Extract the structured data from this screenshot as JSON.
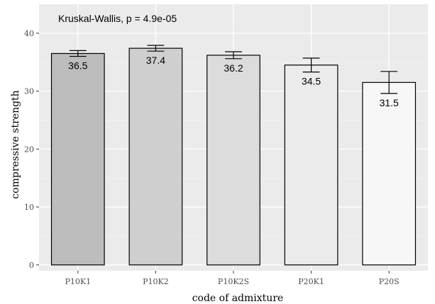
{
  "chart_data": {
    "type": "bar",
    "annotation": "Kruskal-Wallis, p = 4.9e-05",
    "xlabel": "code of admixture",
    "ylabel": "compressive strength",
    "categories": [
      "P10K1",
      "P10K2",
      "P10K2S",
      "P20K1",
      "P20S"
    ],
    "values": [
      36.5,
      37.4,
      36.2,
      34.5,
      31.5
    ],
    "value_labels": [
      "36.5",
      "37.4",
      "36.2",
      "34.5",
      "31.5"
    ],
    "error_low": [
      36.0,
      36.9,
      35.6,
      33.3,
      29.6
    ],
    "error_high": [
      37.0,
      37.9,
      36.8,
      35.7,
      33.4
    ],
    "bar_colors": [
      "#bdbdbd",
      "#cfcfcf",
      "#dcdcdc",
      "#ebebeb",
      "#f7f7f7"
    ],
    "ylim": [
      -1,
      45
    ],
    "yticks": [
      0,
      10,
      20,
      30,
      40
    ],
    "ytick_labels": [
      "0",
      "10",
      "20",
      "30",
      "40"
    ],
    "grid": true,
    "legend": "none",
    "panel_background": "#ebebeb",
    "grid_major_color": "#ffffff",
    "grid_minor_color": "#f4f4f4"
  }
}
